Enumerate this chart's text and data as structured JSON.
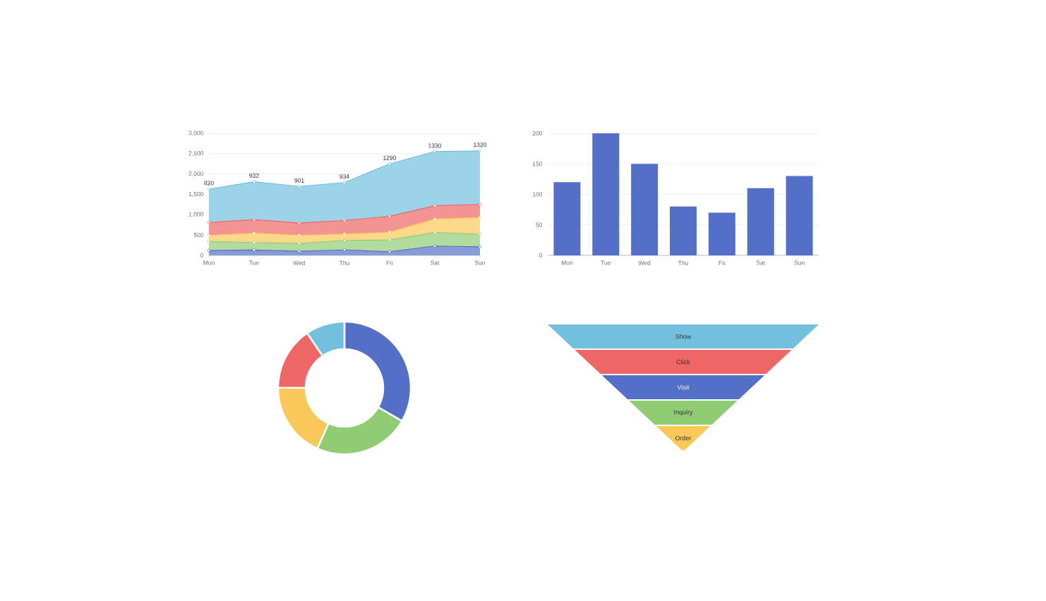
{
  "chart_data": [
    {
      "type": "area",
      "stacked": true,
      "categories": [
        "Mon",
        "Tue",
        "Wed",
        "Thu",
        "Fri",
        "Sat",
        "Sun"
      ],
      "marker": "circle",
      "grid": "y",
      "ylim": [
        0,
        3000
      ],
      "yticks": [
        0,
        500,
        {
          "value": 1000,
          "label": "1,000"
        },
        {
          "value": 1500,
          "label": "1,500"
        },
        {
          "value": 2000,
          "label": "2,000"
        },
        {
          "value": 2500,
          "label": "2,500"
        },
        {
          "value": 3000,
          "label": "3,000"
        }
      ],
      "series": [
        {
          "color": "#5470c6",
          "values": [
            120,
            132,
            101,
            134,
            90,
            230,
            210
          ]
        },
        {
          "color": "#91cc75",
          "values": [
            220,
            182,
            191,
            234,
            290,
            330,
            310
          ]
        },
        {
          "color": "#fac858",
          "values": [
            150,
            232,
            201,
            154,
            190,
            330,
            410
          ]
        },
        {
          "color": "#ee6666",
          "values": [
            320,
            332,
            301,
            334,
            390,
            330,
            320
          ]
        },
        {
          "color": "#73c0de",
          "values": [
            820,
            932,
            901,
            934,
            1290,
            1330,
            1320
          ],
          "value_labels": [
            "820",
            "932",
            "901",
            "934",
            "1290",
            "1330",
            "1320"
          ]
        }
      ]
    },
    {
      "type": "bar",
      "categories": [
        "Mon",
        "Tue",
        "Wed",
        "Thu",
        "Fri",
        "Sat",
        "Sun"
      ],
      "values": [
        120,
        200,
        150,
        80,
        70,
        110,
        130
      ],
      "color": "#5470c6",
      "grid": "y",
      "ylim": [
        0,
        200
      ],
      "yticks": [
        0,
        50,
        100,
        150,
        200
      ]
    },
    {
      "type": "donut",
      "categories": [
        null,
        null,
        null,
        null,
        null
      ],
      "values": [
        33.3,
        23.4,
        18.4,
        15.4,
        9.5
      ],
      "colors": [
        "#5470c6",
        "#91cc75",
        "#fac858",
        "#ee6666",
        "#73c0de"
      ]
    },
    {
      "type": "other",
      "categories": [
        "Show",
        "Click",
        "Visit",
        "Inquiry",
        "Order"
      ],
      "colors": [
        "#73c0de",
        "#ee6666",
        "#5470c6",
        "#91cc75",
        "#fac858"
      ]
    }
  ]
}
